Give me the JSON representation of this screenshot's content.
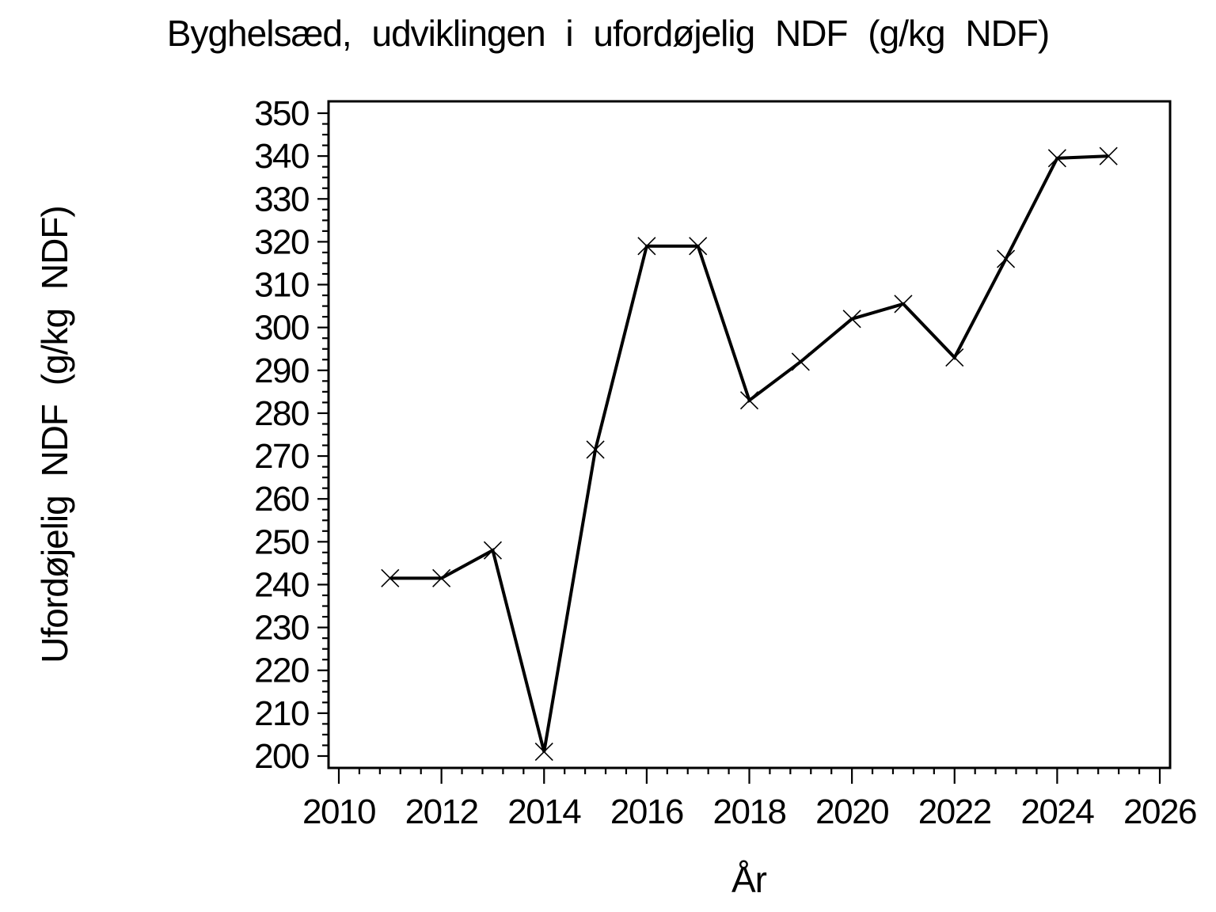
{
  "chart_data": {
    "type": "line",
    "title": "Byghelsæd, udviklingen i ufordøjelig NDF (g/kg NDF)",
    "xlabel": "År",
    "ylabel": "Ufordøjelig NDF (g/kg NDF)",
    "series": [
      {
        "name": "Ufordøjelig NDF",
        "x": [
          2011,
          2012,
          2013,
          2014,
          2015,
          2016,
          2017,
          2018,
          2019,
          2020,
          2021,
          2022,
          2023,
          2024,
          2025
        ],
        "y": [
          241.5,
          241.5,
          248,
          201,
          271.5,
          319,
          319,
          283,
          292,
          302,
          305.5,
          293,
          316,
          339.5,
          340
        ]
      }
    ],
    "xlim": [
      2010,
      2026
    ],
    "ylim": [
      200,
      350
    ],
    "x_major_ticks": [
      2010,
      2012,
      2014,
      2016,
      2018,
      2020,
      2022,
      2024,
      2026
    ],
    "x_tick_labels": [
      "2010",
      "2012",
      "2014",
      "2016",
      "2018",
      "2020",
      "2022",
      "2024",
      "2026"
    ],
    "x_minor_step": 0.4,
    "y_major_ticks": [
      200,
      210,
      220,
      230,
      240,
      250,
      260,
      270,
      280,
      290,
      300,
      310,
      320,
      330,
      340,
      350
    ],
    "y_tick_labels": [
      "200",
      "210",
      "220",
      "230",
      "240",
      "250",
      "260",
      "270",
      "280",
      "290",
      "300",
      "310",
      "320",
      "330",
      "340",
      "350"
    ],
    "y_minor_step": 2.5,
    "marker": "x-cross",
    "line_color": "#000000",
    "axis_color": "#000000",
    "background_color": "#ffffff",
    "grid": false,
    "legend_position": "none"
  }
}
